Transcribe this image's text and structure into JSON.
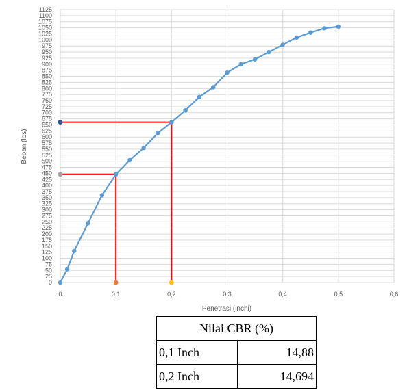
{
  "chart_data": {
    "type": "line",
    "xlabel": "Penetrasi (inchi)",
    "ylabel": "Beban (lbs)",
    "xlim": [
      0,
      0.6
    ],
    "ylim": [
      0,
      1125
    ],
    "x_ticks": [
      "0",
      "0,1",
      "0,2",
      "0,3",
      "0,4",
      "0,5",
      "0,6"
    ],
    "y_tick_step": 25,
    "grid": true,
    "series": [
      {
        "color": "#5b9bd5",
        "x": [
          0,
          0.0125,
          0.025,
          0.05,
          0.075,
          0.1,
          0.125,
          0.15,
          0.175,
          0.2,
          0.225,
          0.25,
          0.275,
          0.3,
          0.325,
          0.35,
          0.375,
          0.4,
          0.425,
          0.45,
          0.475,
          0.5
        ],
        "y": [
          0,
          55,
          130,
          245,
          360,
          446,
          505,
          555,
          615,
          661,
          710,
          765,
          805,
          865,
          900,
          920,
          950,
          980,
          1010,
          1030,
          1048,
          1055
        ]
      }
    ],
    "reference_points": [
      {
        "x": 0,
        "y": 661,
        "color": "#2e5597"
      },
      {
        "x": 0,
        "y": 446,
        "color": "#a5a5a5"
      },
      {
        "x": 0.1,
        "y": 0,
        "color": "#ed7d31"
      },
      {
        "x": 0.2,
        "y": 0,
        "color": "#ffc000"
      }
    ],
    "reference_lines": [
      {
        "x": 0.1,
        "y": 446,
        "color": "#ff0000"
      },
      {
        "x": 0.2,
        "y": 661,
        "color": "#ff0000"
      }
    ]
  },
  "table": {
    "title": "Nilai CBR (%)",
    "rows": [
      {
        "label": "0,1 Inch",
        "value": "14,88"
      },
      {
        "label": "0,2 Inch",
        "value": "14,694"
      }
    ]
  }
}
